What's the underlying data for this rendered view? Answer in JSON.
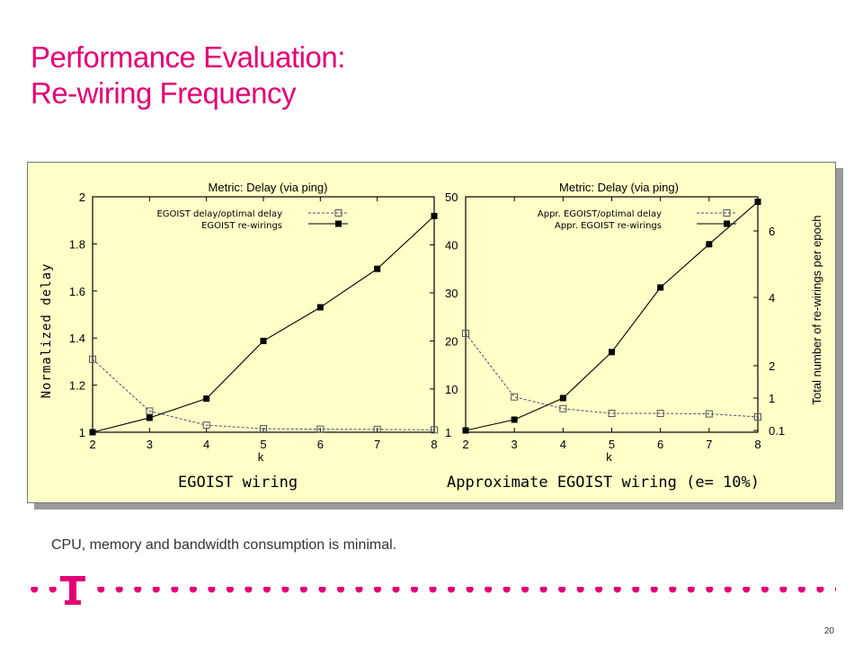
{
  "slide": {
    "title_line1": "Performance Evaluation:",
    "title_line2": "Re-wiring Frequency",
    "footer_text": "CPU, memory and bandwidth consumption is minimal.",
    "page_number": "20",
    "accent_color": "#e20074",
    "panel_color": "#ffffc8"
  },
  "captions": {
    "left": "EGOIST wiring",
    "right": "Approximate EGOIST wiring (e= 10%)"
  },
  "chart_data": [
    {
      "type": "line",
      "title": "Metric: Delay (via ping)",
      "xlabel": "k",
      "ylabel": "Normalized delay",
      "y2label": "",
      "x": [
        2,
        3,
        4,
        5,
        6,
        7,
        8
      ],
      "xlim": [
        2,
        8
      ],
      "ylim": [
        1,
        2
      ],
      "y2lim": [
        1,
        50
      ],
      "yticks": [
        "1",
        "1.2",
        "1.4",
        "1.6",
        "1.8",
        "2"
      ],
      "y2ticks": [
        "1",
        "10",
        "20",
        "30",
        "40",
        "50"
      ],
      "series": [
        {
          "name": "EGOIST delay/optimal delay",
          "axis": "left",
          "marker": "open-square",
          "dashed": true,
          "values": [
            1.31,
            1.09,
            1.03,
            1.015,
            1.013,
            1.012,
            1.01
          ]
        },
        {
          "name": "EGOIST re-wirings",
          "axis": "right",
          "marker": "filled-square",
          "dashed": false,
          "values": [
            1,
            4,
            8,
            20,
            27,
            35,
            46
          ]
        }
      ]
    },
    {
      "type": "line",
      "title": "Metric: Delay (via ping)",
      "xlabel": "k",
      "ylabel": "",
      "y2label": "Total number of re-wirings per epoch",
      "x": [
        2,
        3,
        4,
        5,
        6,
        7,
        8
      ],
      "xlim": [
        2,
        8
      ],
      "ylim": [
        1,
        2
      ],
      "y2lim": [
        0,
        7
      ],
      "yticks": [],
      "y2ticks": [
        "0.1",
        "1",
        "2",
        "4",
        "6"
      ],
      "series": [
        {
          "name": "Appr. EGOIST/optimal delay",
          "axis": "left",
          "marker": "open-square",
          "dashed": true,
          "values": [
            1.42,
            1.15,
            1.1,
            1.08,
            1.08,
            1.078,
            1.065
          ]
        },
        {
          "name": "Appr. EGOIST re-wirings",
          "axis": "right",
          "marker": "filled-square",
          "dashed": false,
          "values": [
            0.1,
            0.4,
            1.0,
            2.4,
            4.3,
            5.6,
            6.9
          ]
        }
      ]
    }
  ]
}
